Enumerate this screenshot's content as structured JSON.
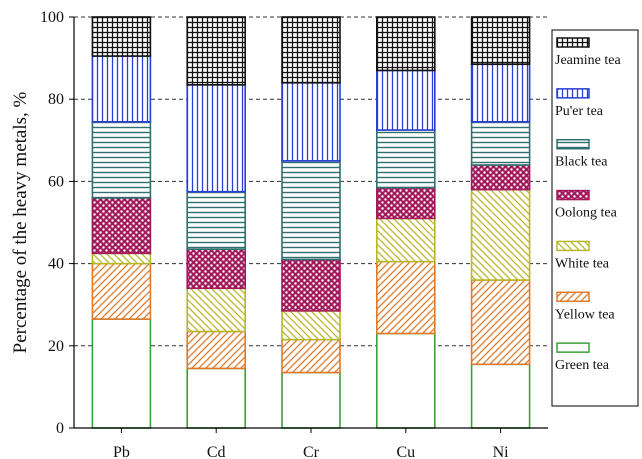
{
  "chart_data": {
    "type": "bar",
    "stacked": true,
    "title": "",
    "xlabel": "",
    "ylabel": "Percentage of the heavy metals, %",
    "ylim": [
      0,
      100
    ],
    "yticks": [
      "0",
      "20",
      "40",
      "60",
      "80",
      "100"
    ],
    "grid": "dashed horizontal at y ticks",
    "legend_placement": "right",
    "categories": [
      "Pb",
      "Cd",
      "Cr",
      "Cu",
      "Ni"
    ],
    "series": [
      {
        "name": "Green tea",
        "color": "#3aa13a",
        "pattern": "none",
        "values": [
          26.5,
          14.5,
          13.5,
          23,
          15.5
        ]
      },
      {
        "name": "Yellow tea",
        "color": "#e07a2a",
        "pattern": "diag-back",
        "values": [
          13.5,
          9,
          8,
          17.5,
          20.5
        ]
      },
      {
        "name": "White tea",
        "color": "#b7b72a",
        "pattern": "diag-fwd",
        "values": [
          2.5,
          10.5,
          7,
          10.5,
          22
        ]
      },
      {
        "name": "Oolong tea",
        "color": "#a31a5c",
        "pattern": "dots",
        "values": [
          13.5,
          9.5,
          12.5,
          7.5,
          6
        ]
      },
      {
        "name": "Black tea",
        "color": "#2f6f6f",
        "pattern": "horizontal",
        "values": [
          18.5,
          14,
          24,
          14,
          10.5
        ]
      },
      {
        "name": "Pu'er tea",
        "color": "#2a3fd6",
        "pattern": "vertical",
        "values": [
          16,
          26,
          19,
          14.5,
          14
        ]
      },
      {
        "name": "Jeamine tea",
        "color": "#111111",
        "pattern": "grid",
        "values": [
          9.5,
          16.5,
          16,
          13,
          11.5
        ]
      }
    ]
  }
}
